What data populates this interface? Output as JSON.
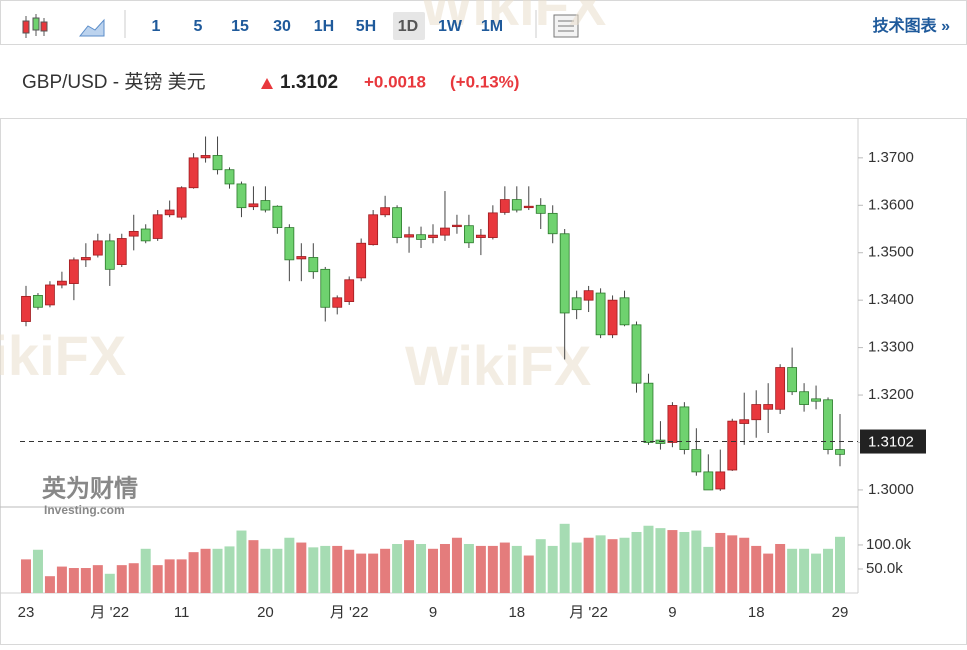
{
  "header": {
    "intervals": [
      "1",
      "5",
      "15",
      "30",
      "1H",
      "5H",
      "1D",
      "1W",
      "1M"
    ],
    "active_interval": "1D",
    "link": "技术图表 »",
    "symbol": "GBP/USD - 英镑 美元",
    "price": "1.3102",
    "change": "+0.0018",
    "change_pct": "(+0.13%)"
  },
  "watermark": "WikiFX",
  "logo": {
    "name": "英为财情",
    "sub": "Investing.com"
  },
  "chart_data": {
    "type": "candlestick",
    "categories": [
      "23",
      null,
      null,
      null,
      null,
      null,
      null,
      "月 '22",
      null,
      null,
      null,
      null,
      null,
      "11",
      null,
      null,
      null,
      null,
      null,
      null,
      "20",
      null,
      null,
      null,
      null,
      null,
      null,
      "月 '22",
      null,
      null,
      null,
      null,
      null,
      null,
      "9",
      null,
      null,
      null,
      null,
      null,
      null,
      "18",
      null,
      null,
      null,
      null,
      null,
      "月 '22",
      null,
      null,
      null,
      null,
      null,
      null,
      "9",
      null,
      null,
      null,
      null,
      null,
      null,
      "18",
      null,
      null,
      null,
      null,
      null,
      null,
      "29"
    ],
    "open": [
      1.3355,
      1.341,
      1.339,
      1.3432,
      1.3435,
      1.3485,
      1.3495,
      1.3525,
      1.3475,
      1.3535,
      1.355,
      1.353,
      1.358,
      1.3575,
      1.3637,
      1.37,
      1.3705,
      1.3675,
      1.3645,
      1.3597,
      1.361,
      1.3598,
      1.3553,
      1.3487,
      1.349,
      1.3465,
      1.3385,
      1.3397,
      1.3447,
      1.3517,
      1.358,
      1.3595,
      1.3533,
      1.3538,
      1.3532,
      1.3537,
      1.3555,
      1.3557,
      1.3532,
      1.3532,
      1.3585,
      1.3612,
      1.3595,
      1.36,
      1.3583,
      1.354,
      1.3405,
      1.34,
      1.3415,
      1.3327,
      1.3405,
      1.3348,
      1.3225,
      1.3105,
      1.31,
      1.3175,
      1.3085,
      1.3038,
      1.3002,
      1.3042,
      1.314,
      1.3148,
      1.317,
      1.317,
      1.3258,
      1.3207,
      1.3192,
      1.319,
      1.3085
    ],
    "high": [
      1.343,
      1.3415,
      1.344,
      1.346,
      1.349,
      1.352,
      1.354,
      1.354,
      1.354,
      1.358,
      1.356,
      1.359,
      1.361,
      1.364,
      1.371,
      1.3745,
      1.3745,
      1.368,
      1.365,
      1.364,
      1.364,
      1.36,
      1.356,
      1.352,
      1.352,
      1.347,
      1.341,
      1.345,
      1.353,
      1.359,
      1.362,
      1.36,
      1.3555,
      1.3555,
      1.356,
      1.363,
      1.358,
      1.358,
      1.355,
      1.36,
      1.364,
      1.364,
      1.364,
      1.3615,
      1.36,
      1.355,
      1.342,
      1.343,
      1.3425,
      1.341,
      1.342,
      1.3355,
      1.3245,
      1.3145,
      1.3185,
      1.3185,
      1.313,
      1.3075,
      1.3085,
      1.315,
      1.3205,
      1.321,
      1.3225,
      1.3265,
      1.33,
      1.3225,
      1.322,
      1.3195,
      1.316
    ],
    "low": [
      1.3345,
      1.338,
      1.3385,
      1.3425,
      1.34,
      1.347,
      1.349,
      1.343,
      1.347,
      1.3505,
      1.352,
      1.3525,
      1.3575,
      1.357,
      1.3635,
      1.369,
      1.3665,
      1.3635,
      1.3575,
      1.359,
      1.3585,
      1.354,
      1.344,
      1.344,
      1.3445,
      1.3355,
      1.337,
      1.339,
      1.344,
      1.3515,
      1.3575,
      1.352,
      1.35,
      1.351,
      1.352,
      1.3525,
      1.354,
      1.351,
      1.3495,
      1.3528,
      1.358,
      1.3585,
      1.359,
      1.355,
      1.352,
      1.3275,
      1.336,
      1.3375,
      1.332,
      1.332,
      1.3345,
      1.3205,
      1.3095,
      1.3085,
      1.309,
      1.3075,
      1.303,
      1.3,
      1.2998,
      1.304,
      1.3095,
      1.311,
      1.312,
      1.316,
      1.32,
      1.3165,
      1.317,
      1.3075,
      1.305
    ],
    "close": [
      1.3408,
      1.3385,
      1.3432,
      1.344,
      1.3485,
      1.349,
      1.3525,
      1.3465,
      1.353,
      1.3545,
      1.3525,
      1.358,
      1.359,
      1.3637,
      1.37,
      1.3705,
      1.3675,
      1.3645,
      1.3595,
      1.3603,
      1.359,
      1.3553,
      1.3485,
      1.3492,
      1.346,
      1.3385,
      1.3405,
      1.3443,
      1.352,
      1.358,
      1.3595,
      1.3532,
      1.3538,
      1.3528,
      1.3537,
      1.3552,
      1.3558,
      1.3521,
      1.3537,
      1.3584,
      1.3612,
      1.359,
      1.3598,
      1.3583,
      1.354,
      1.3373,
      1.338,
      1.342,
      1.3327,
      1.34,
      1.3348,
      1.3225,
      1.31,
      1.3098,
      1.3178,
      1.3085,
      1.3038,
      1.3,
      1.3038,
      1.3145,
      1.3148,
      1.318,
      1.318,
      1.3258,
      1.3207,
      1.318,
      1.3187,
      1.3085,
      1.3075
    ],
    "volume": [
      70000,
      90000,
      35000,
      55000,
      52000,
      52000,
      58000,
      40000,
      58000,
      62000,
      92000,
      58000,
      70000,
      70000,
      85000,
      92000,
      92000,
      97000,
      130000,
      110000,
      92000,
      92000,
      115000,
      105000,
      95000,
      98000,
      98000,
      90000,
      82000,
      82000,
      92000,
      102000,
      110000,
      102000,
      92000,
      102000,
      115000,
      102000,
      98000,
      98000,
      105000,
      98000,
      78000,
      112000,
      98000,
      144000,
      105000,
      115000,
      120000,
      112000,
      115000,
      127000,
      140000,
      135000,
      131000,
      127000,
      130000,
      96000,
      125000,
      120000,
      115000,
      98000,
      82000,
      102000,
      92000,
      92000,
      82000,
      92000,
      117000
    ],
    "ylim": [
      1.2964,
      1.3784
    ],
    "yticks": [
      {
        "value": 1.3,
        "label": "1.3000"
      },
      {
        "value": 1.31,
        "label": "1.3100"
      },
      {
        "value": 1.32,
        "label": "1.3200"
      },
      {
        "value": 1.33,
        "label": "1.3300"
      },
      {
        "value": 1.34,
        "label": "1.3400"
      },
      {
        "value": 1.35,
        "label": "1.3500"
      },
      {
        "value": 1.36,
        "label": "1.3600"
      },
      {
        "value": 1.37,
        "label": "1.3700"
      }
    ],
    "volume_ylim": [
      0,
      179000
    ],
    "volume_ticks": [
      {
        "value": 50000,
        "label": "50.0k"
      },
      {
        "value": 100000,
        "label": "100.0k"
      }
    ],
    "current_price": 1.3102,
    "up_color": "#e8383d",
    "down_color": "#6fd26f",
    "up_volume_color": "#e47c7c",
    "down_volume_color": "#a6dcb3"
  }
}
